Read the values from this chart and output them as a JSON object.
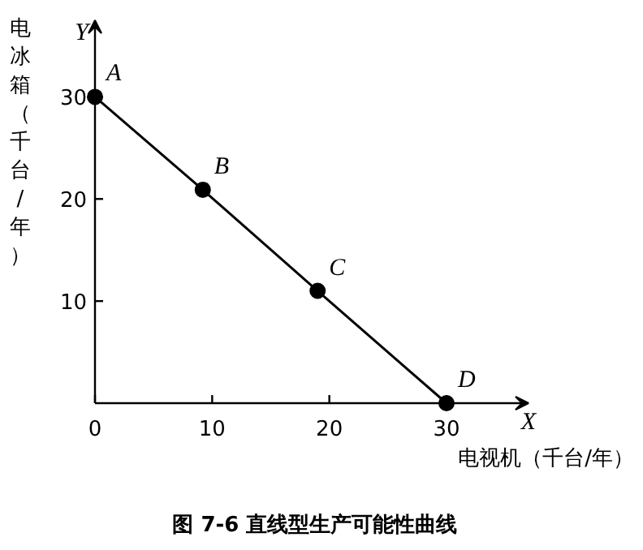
{
  "chart_data": {
    "type": "line",
    "title": "图 7-6   直线型生产可能性曲线",
    "xlabel": "电视机（千台/年）",
    "ylabel": "电冰箱（千台/年）",
    "x": [
      0,
      9.2,
      19,
      30
    ],
    "series": [
      {
        "color": "#000000",
        "values": [
          30,
          20.9,
          11,
          0
        ]
      }
    ],
    "marker": "circle",
    "line_style": "solid",
    "grid": false,
    "xlim": [
      0,
      37
    ],
    "ylim": [
      0,
      37.5
    ],
    "xticks": [
      0,
      10,
      20,
      30
    ],
    "yticks": [
      10,
      20,
      30
    ],
    "annotations": [
      "Y",
      "X",
      {
        "text": "A",
        "x": 0,
        "y": 30
      },
      {
        "text": "B",
        "x": 9.2,
        "y": 20.9
      },
      {
        "text": "C",
        "x": 19,
        "y": 11
      },
      {
        "text": "D",
        "x": 30,
        "y": 0
      }
    ]
  }
}
